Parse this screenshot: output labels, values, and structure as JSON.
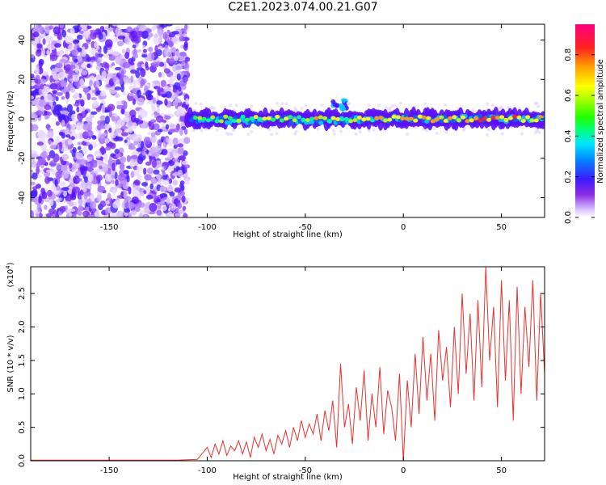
{
  "title": "C2E1.2023.074.00.21.G07",
  "colors": {
    "snr_line": "#e8322e",
    "axis": "#000000"
  },
  "chart_data": [
    {
      "type": "heatmap",
      "title": "C2E1.2023.074.00.21.G07",
      "xlabel": "Height of straight line (km)",
      "ylabel": "Frequency (Hz)",
      "xlim": [
        -190,
        72
      ],
      "ylim": [
        -50,
        48
      ],
      "xticks": [
        -150,
        -100,
        -50,
        0,
        50
      ],
      "yticks": [
        -40,
        -20,
        0,
        20,
        40
      ],
      "colorbar": {
        "label": "Normalized spectral amplitude",
        "range": [
          0.0,
          0.95
        ],
        "ticks": [
          "0.0",
          "0.2",
          "0.4",
          "0.6",
          "0.8"
        ]
      },
      "features": {
        "noise_region_x": [
          -190,
          -110
        ],
        "ridge_frequency_hz": 0,
        "ridge_start_x": -110,
        "side_blob": {
          "x_center": -30,
          "y_center": 8
        }
      }
    },
    {
      "type": "line",
      "xlabel": "Height of straight line (km)",
      "ylabel": "SNR (10 * v/v)",
      "yscale_label": "(x10",
      "yscale_exp": "4",
      "xlim": [
        -190,
        72
      ],
      "ylim": [
        0,
        2.9
      ],
      "xticks": [
        -150,
        -100,
        -50,
        0,
        50
      ],
      "yticks": [
        "0.0",
        "0.5",
        "1.0",
        "1.5",
        "2.0",
        "2.5"
      ],
      "series": [
        {
          "x": [
            -190,
            -170,
            -150,
            -130,
            -115,
            -105,
            -100,
            -98,
            -96,
            -94,
            -92,
            -90,
            -88,
            -86,
            -84,
            -82,
            -80,
            -78,
            -76,
            -74,
            -72,
            -70,
            -68,
            -66,
            -64,
            -62,
            -60,
            -58,
            -56,
            -54,
            -52,
            -50,
            -48,
            -46,
            -44,
            -42,
            -40,
            -38,
            -36,
            -34,
            -32,
            -30,
            -28,
            -26,
            -24,
            -22,
            -20,
            -18,
            -16,
            -14,
            -12,
            -10,
            -8,
            -6,
            -4,
            -2,
            0,
            2,
            4,
            6,
            8,
            10,
            12,
            14,
            16,
            18,
            20,
            22,
            24,
            26,
            28,
            30,
            32,
            34,
            36,
            38,
            40,
            42,
            44,
            46,
            48,
            50,
            52,
            54,
            56,
            58,
            60,
            62,
            64,
            66,
            68,
            70,
            72
          ],
          "y": [
            0.01,
            0.01,
            0.01,
            0.01,
            0.01,
            0.02,
            0.2,
            0.05,
            0.25,
            0.1,
            0.3,
            0.08,
            0.22,
            0.15,
            0.3,
            0.1,
            0.28,
            0.05,
            0.35,
            0.2,
            0.4,
            0.15,
            0.32,
            0.1,
            0.38,
            0.25,
            0.45,
            0.2,
            0.5,
            0.3,
            0.6,
            0.35,
            0.55,
            0.4,
            0.7,
            0.3,
            0.75,
            0.45,
            0.9,
            0.2,
            1.45,
            0.5,
            0.85,
            0.25,
            1.1,
            0.6,
            1.35,
            0.3,
            1.0,
            0.5,
            1.4,
            0.4,
            1.05,
            0.8,
            0.3,
            1.3,
            0.0,
            1.2,
            0.5,
            1.6,
            0.7,
            1.85,
            0.9,
            1.6,
            0.6,
            1.95,
            1.2,
            1.7,
            0.8,
            2.0,
            1.0,
            2.5,
            1.3,
            2.2,
            0.9,
            2.4,
            1.1,
            2.9,
            1.5,
            2.3,
            0.8,
            2.7,
            1.2,
            2.4,
            0.6,
            2.6,
            1.0,
            2.3,
            1.4,
            2.7,
            0.9,
            2.5,
            1.3
          ]
        }
      ]
    }
  ]
}
